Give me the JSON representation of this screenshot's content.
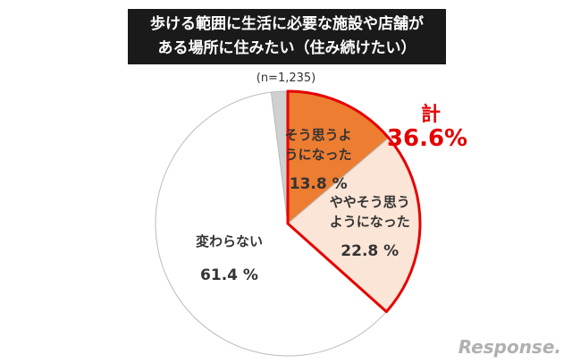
{
  "chart_data": {
    "type": "pie",
    "title": "歩ける範囲に生活に必要な施設や店舗が\nある場所に住みたい（住み続けたい）",
    "subtitle": "(n=1,235)",
    "categories": [
      "そう思うよ\nうになった",
      "ややそう思う\nようになった",
      "変わらない",
      null
    ],
    "values": [
      13.8,
      22.8,
      61.4,
      2.0
    ],
    "value_labels": [
      "13.8 %",
      "22.8 %",
      "61.4 %",
      null
    ],
    "colors": [
      "#ed7d31",
      "#fbe5d6",
      "#ffffff",
      "#d0d0d0"
    ],
    "annotation": {
      "label": "計",
      "text": "36.6%",
      "value": 36.6,
      "color": "#e60000"
    }
  },
  "watermark": "Response."
}
